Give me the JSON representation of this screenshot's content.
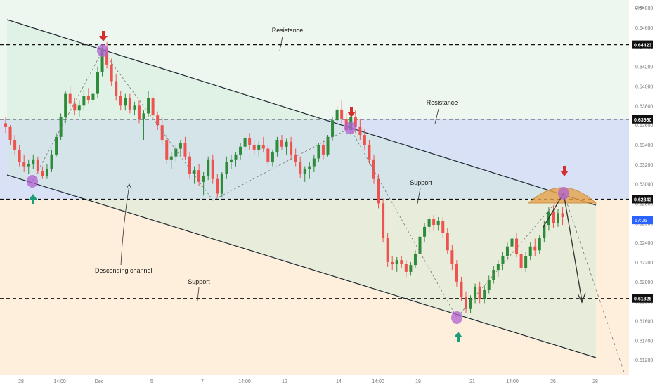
{
  "colors": {
    "up": "#2e8b3a",
    "down": "#ef5350",
    "channel_fill": "#cfe8d9",
    "blue_zone": "#b9c9ee",
    "orange_zone": "#fde2c4",
    "marker": "#b062d1",
    "red_arrow": "#d32f2f",
    "green_arrow": "#1b9e77",
    "dome": "#e7a24a",
    "live_price_bg": "#2962ff"
  },
  "chart_data": {
    "type": "candlestick",
    "currency": "CHF",
    "ylim": [
      0.6105,
      0.6488
    ],
    "y_ticks": [
      "0.64800",
      "0.64600",
      "0.64400",
      "0.64200",
      "0.64000",
      "0.63800",
      "0.63600",
      "0.63400",
      "0.63200",
      "0.63000",
      "0.62800",
      "0.62600",
      "0.62400",
      "0.62200",
      "0.62000",
      "0.61800",
      "0.61600",
      "0.61400",
      "0.61200"
    ],
    "x_ticks": [
      "28",
      "14:00",
      "Dec",
      "5",
      "7",
      "14:00",
      "12",
      "14",
      "14:00",
      "19",
      "21",
      "14:00",
      "26",
      "28"
    ],
    "levels": [
      {
        "value": 0.64423,
        "label": "0.64423",
        "text": "Resistance"
      },
      {
        "value": 0.6366,
        "label": "0.63660",
        "text": "Resistance"
      },
      {
        "value": 0.62843,
        "label": "0.62843",
        "text": "Support"
      },
      {
        "value": 0.61828,
        "label": "0.61828",
        "text": "Support"
      }
    ],
    "live_price_label": "57:06",
    "annotations": {
      "channel": "Descending channel"
    },
    "candles": [
      [
        0.6362,
        0.6368,
        0.6352,
        0.6358
      ],
      [
        0.6358,
        0.636,
        0.634,
        0.6345
      ],
      [
        0.6345,
        0.635,
        0.633,
        0.6335
      ],
      [
        0.6335,
        0.634,
        0.6318,
        0.6322
      ],
      [
        0.6322,
        0.633,
        0.6312,
        0.6318
      ],
      [
        0.6318,
        0.6325,
        0.631,
        0.632
      ],
      [
        0.632,
        0.633,
        0.6315,
        0.6325
      ],
      [
        0.6325,
        0.6328,
        0.631,
        0.6313
      ],
      [
        0.6313,
        0.6318,
        0.6305,
        0.6308
      ],
      [
        0.6308,
        0.632,
        0.6305,
        0.6315
      ],
      [
        0.6315,
        0.6335,
        0.6312,
        0.633
      ],
      [
        0.633,
        0.6352,
        0.6328,
        0.6348
      ],
      [
        0.6348,
        0.6372,
        0.6345,
        0.6368
      ],
      [
        0.6368,
        0.6395,
        0.6362,
        0.6392
      ],
      [
        0.6392,
        0.64,
        0.6378,
        0.6382
      ],
      [
        0.6382,
        0.6388,
        0.637,
        0.6375
      ],
      [
        0.6375,
        0.6385,
        0.6368,
        0.638
      ],
      [
        0.638,
        0.6396,
        0.6375,
        0.639
      ],
      [
        0.639,
        0.6398,
        0.6382,
        0.6386
      ],
      [
        0.6386,
        0.6394,
        0.638,
        0.6392
      ],
      [
        0.6392,
        0.642,
        0.6388,
        0.6414
      ],
      [
        0.6414,
        0.6442,
        0.641,
        0.6438
      ],
      [
        0.6438,
        0.6445,
        0.6418,
        0.6422
      ],
      [
        0.6422,
        0.6428,
        0.64,
        0.6405
      ],
      [
        0.6405,
        0.6412,
        0.6385,
        0.639
      ],
      [
        0.639,
        0.6395,
        0.6375,
        0.638
      ],
      [
        0.638,
        0.6392,
        0.6375,
        0.6388
      ],
      [
        0.6388,
        0.6392,
        0.6372,
        0.6376
      ],
      [
        0.6376,
        0.6384,
        0.637,
        0.638
      ],
      [
        0.638,
        0.6385,
        0.6362,
        0.6366
      ],
      [
        0.6366,
        0.6375,
        0.6345,
        0.6372
      ],
      [
        0.6372,
        0.6395,
        0.6368,
        0.6388
      ],
      [
        0.6388,
        0.6392,
        0.6365,
        0.637
      ],
      [
        0.637,
        0.6374,
        0.6355,
        0.636
      ],
      [
        0.636,
        0.6368,
        0.634,
        0.6345
      ],
      [
        0.6345,
        0.635,
        0.632,
        0.6325
      ],
      [
        0.6325,
        0.6332,
        0.6315,
        0.6328
      ],
      [
        0.6328,
        0.634,
        0.6322,
        0.6336
      ],
      [
        0.6336,
        0.6345,
        0.633,
        0.6342
      ],
      [
        0.6342,
        0.6348,
        0.6325,
        0.6328
      ],
      [
        0.6328,
        0.6332,
        0.6305,
        0.631
      ],
      [
        0.631,
        0.6318,
        0.63,
        0.6314
      ],
      [
        0.6314,
        0.632,
        0.6298,
        0.6302
      ],
      [
        0.6302,
        0.6312,
        0.6288,
        0.6308
      ],
      [
        0.6308,
        0.6328,
        0.6304,
        0.6325
      ],
      [
        0.6325,
        0.633,
        0.63,
        0.6305
      ],
      [
        0.6305,
        0.631,
        0.6286,
        0.629
      ],
      [
        0.629,
        0.6312,
        0.6286,
        0.631
      ],
      [
        0.631,
        0.6328,
        0.6305,
        0.6322
      ],
      [
        0.6322,
        0.633,
        0.6315,
        0.6325
      ],
      [
        0.6325,
        0.6332,
        0.6318,
        0.633
      ],
      [
        0.633,
        0.6342,
        0.6325,
        0.6338
      ],
      [
        0.6338,
        0.635,
        0.6334,
        0.6347
      ],
      [
        0.6347,
        0.6352,
        0.6335,
        0.634
      ],
      [
        0.634,
        0.6345,
        0.633,
        0.6335
      ],
      [
        0.6335,
        0.6344,
        0.6328,
        0.634
      ],
      [
        0.634,
        0.6348,
        0.6332,
        0.6336
      ],
      [
        0.6336,
        0.634,
        0.6318,
        0.6322
      ],
      [
        0.6322,
        0.6335,
        0.6318,
        0.6332
      ],
      [
        0.6332,
        0.6348,
        0.6328,
        0.6345
      ],
      [
        0.6345,
        0.635,
        0.6335,
        0.6338
      ],
      [
        0.6338,
        0.6346,
        0.633,
        0.6343
      ],
      [
        0.6343,
        0.6348,
        0.6325,
        0.633
      ],
      [
        0.633,
        0.6336,
        0.6318,
        0.6322
      ],
      [
        0.6322,
        0.6328,
        0.6306,
        0.631
      ],
      [
        0.631,
        0.6318,
        0.6302,
        0.6315
      ],
      [
        0.6315,
        0.6322,
        0.6305,
        0.6318
      ],
      [
        0.6318,
        0.633,
        0.6312,
        0.6326
      ],
      [
        0.6326,
        0.6342,
        0.6322,
        0.634
      ],
      [
        0.634,
        0.6345,
        0.6325,
        0.633
      ],
      [
        0.633,
        0.635,
        0.6328,
        0.6348
      ],
      [
        0.6348,
        0.6368,
        0.6344,
        0.6365
      ],
      [
        0.6365,
        0.638,
        0.636,
        0.6376
      ],
      [
        0.6376,
        0.6385,
        0.6362,
        0.6366
      ],
      [
        0.6366,
        0.6372,
        0.635,
        0.6355
      ],
      [
        0.6355,
        0.637,
        0.635,
        0.6368
      ],
      [
        0.6368,
        0.6375,
        0.6352,
        0.6358
      ],
      [
        0.6358,
        0.6366,
        0.6345,
        0.635
      ],
      [
        0.635,
        0.6356,
        0.6335,
        0.634
      ],
      [
        0.634,
        0.6345,
        0.632,
        0.6325
      ],
      [
        0.6325,
        0.633,
        0.63,
        0.6305
      ],
      [
        0.6305,
        0.631,
        0.6275,
        0.628
      ],
      [
        0.628,
        0.6285,
        0.624,
        0.6245
      ],
      [
        0.6245,
        0.625,
        0.6215,
        0.622
      ],
      [
        0.622,
        0.6226,
        0.6212,
        0.6218
      ],
      [
        0.6218,
        0.6225,
        0.621,
        0.6222
      ],
      [
        0.6222,
        0.6226,
        0.6214,
        0.6218
      ],
      [
        0.6218,
        0.6222,
        0.6205,
        0.621
      ],
      [
        0.621,
        0.622,
        0.6206,
        0.6217
      ],
      [
        0.6217,
        0.6232,
        0.6214,
        0.6228
      ],
      [
        0.6228,
        0.625,
        0.6225,
        0.6246
      ],
      [
        0.6246,
        0.626,
        0.624,
        0.6256
      ],
      [
        0.6256,
        0.6268,
        0.625,
        0.6264
      ],
      [
        0.6264,
        0.6268,
        0.6252,
        0.6258
      ],
      [
        0.6258,
        0.6266,
        0.6252,
        0.6262
      ],
      [
        0.6262,
        0.6266,
        0.6245,
        0.625
      ],
      [
        0.625,
        0.6255,
        0.6228,
        0.6232
      ],
      [
        0.6232,
        0.6238,
        0.6212,
        0.6218
      ],
      [
        0.6218,
        0.6222,
        0.6195,
        0.62
      ],
      [
        0.62,
        0.6205,
        0.618,
        0.6184
      ],
      [
        0.6184,
        0.619,
        0.6168,
        0.6172
      ],
      [
        0.6172,
        0.6186,
        0.6168,
        0.6182
      ],
      [
        0.6182,
        0.6198,
        0.6178,
        0.6195
      ],
      [
        0.6195,
        0.62,
        0.6178,
        0.6182
      ],
      [
        0.6182,
        0.6196,
        0.6178,
        0.6192
      ],
      [
        0.6192,
        0.6206,
        0.6188,
        0.6202
      ],
      [
        0.6202,
        0.6216,
        0.6198,
        0.6212
      ],
      [
        0.6212,
        0.6222,
        0.6205,
        0.6218
      ],
      [
        0.6218,
        0.623,
        0.6212,
        0.6226
      ],
      [
        0.6226,
        0.624,
        0.6222,
        0.6236
      ],
      [
        0.6236,
        0.6248,
        0.623,
        0.6244
      ],
      [
        0.6244,
        0.625,
        0.6225,
        0.6228
      ],
      [
        0.6228,
        0.6232,
        0.621,
        0.6214
      ],
      [
        0.6214,
        0.623,
        0.621,
        0.6226
      ],
      [
        0.6226,
        0.624,
        0.6222,
        0.6236
      ],
      [
        0.6236,
        0.6244,
        0.6226,
        0.6232
      ],
      [
        0.6232,
        0.6248,
        0.6228,
        0.6245
      ],
      [
        0.6245,
        0.6262,
        0.624,
        0.6258
      ],
      [
        0.6258,
        0.6276,
        0.6252,
        0.6272
      ],
      [
        0.6272,
        0.6278,
        0.6255,
        0.626
      ],
      [
        0.626,
        0.6274,
        0.6256,
        0.627
      ],
      [
        0.627,
        0.6276,
        0.6258,
        0.6266
      ]
    ]
  }
}
